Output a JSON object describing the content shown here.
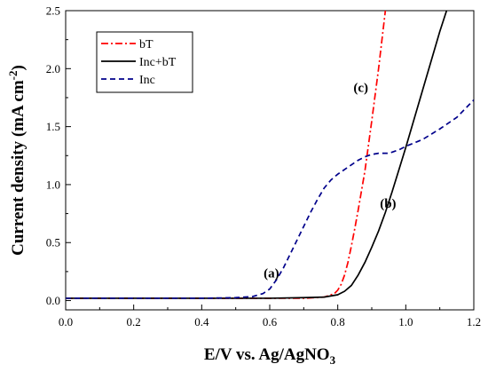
{
  "chart_data": {
    "type": "line",
    "xlabel": "E/V vs. Ag/AgNO",
    "xlabel_sub": "3",
    "ylabel": "Current density (mA cm",
    "ylabel_sup": "-2",
    "ylabel_close": ")",
    "xlim": [
      0.0,
      1.2
    ],
    "ylim": [
      -0.08,
      2.5
    ],
    "x_ticks": [
      "0.0",
      "0.2",
      "0.4",
      "0.6",
      "0.8",
      "1.0",
      "1.2"
    ],
    "y_ticks": [
      "0.0",
      "0.5",
      "1.0",
      "1.5",
      "2.0",
      "2.5"
    ],
    "grid": false,
    "legend_placement": "top-left",
    "series": [
      {
        "name": "bT",
        "color": "#ff0000",
        "dash": "dash-dot",
        "x": [
          0.0,
          0.2,
          0.4,
          0.6,
          0.7,
          0.76,
          0.79,
          0.8,
          0.81,
          0.82,
          0.83,
          0.84,
          0.85,
          0.86,
          0.87,
          0.88,
          0.9,
          0.92,
          0.94
        ],
        "y": [
          0.02,
          0.02,
          0.02,
          0.02,
          0.02,
          0.03,
          0.06,
          0.09,
          0.14,
          0.22,
          0.33,
          0.47,
          0.62,
          0.78,
          0.95,
          1.12,
          1.55,
          2.0,
          2.5
        ]
      },
      {
        "name": "Inc+bT",
        "color": "#000000",
        "dash": "solid",
        "x": [
          0.0,
          0.2,
          0.4,
          0.6,
          0.7,
          0.76,
          0.8,
          0.82,
          0.84,
          0.86,
          0.88,
          0.9,
          0.92,
          0.94,
          0.96,
          0.98,
          1.0,
          1.02,
          1.04,
          1.06,
          1.08,
          1.1,
          1.12
        ],
        "y": [
          0.02,
          0.02,
          0.02,
          0.02,
          0.025,
          0.03,
          0.05,
          0.08,
          0.13,
          0.22,
          0.33,
          0.46,
          0.6,
          0.76,
          0.94,
          1.13,
          1.32,
          1.52,
          1.72,
          1.92,
          2.12,
          2.32,
          2.5
        ]
      },
      {
        "name": "Inc",
        "color": "#00008b",
        "dash": "dashed",
        "x": [
          0.0,
          0.2,
          0.4,
          0.5,
          0.55,
          0.58,
          0.6,
          0.62,
          0.64,
          0.66,
          0.68,
          0.7,
          0.72,
          0.74,
          0.76,
          0.78,
          0.8,
          0.82,
          0.84,
          0.86,
          0.88,
          0.9,
          0.92,
          0.95,
          0.98,
          1.0,
          1.05,
          1.1,
          1.15,
          1.2
        ],
        "y": [
          0.02,
          0.02,
          0.02,
          0.025,
          0.035,
          0.06,
          0.1,
          0.18,
          0.28,
          0.4,
          0.52,
          0.64,
          0.76,
          0.87,
          0.97,
          1.04,
          1.09,
          1.13,
          1.17,
          1.21,
          1.24,
          1.26,
          1.27,
          1.27,
          1.3,
          1.33,
          1.39,
          1.48,
          1.58,
          1.73
        ]
      }
    ],
    "annotations": [
      {
        "text": "(a)",
        "x": 0.605,
        "y": 0.2
      },
      {
        "text": "(b)",
        "x": 0.948,
        "y": 0.8
      },
      {
        "text": "(c)",
        "x": 0.868,
        "y": 1.8
      }
    ]
  }
}
